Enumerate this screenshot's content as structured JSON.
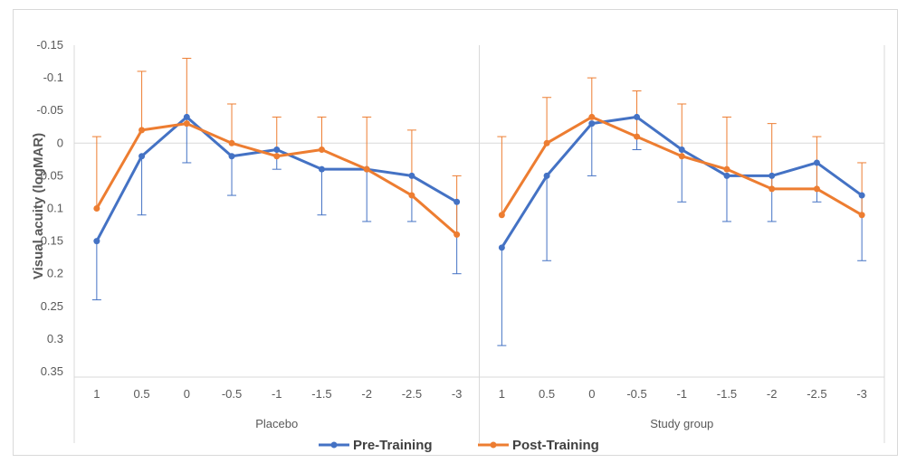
{
  "chart_data": {
    "type": "line",
    "ylabel": "Visual acuity (logMAR)",
    "y_axis_reversed": true,
    "ylim": [
      -0.15,
      0.35
    ],
    "y_ticks": [
      "-0.15",
      "-0.1",
      "-0.05",
      "0",
      "0.05",
      "0.1",
      "0.15",
      "0.2",
      "0.25",
      "0.3",
      "0.35"
    ],
    "y_tick_values": [
      -0.15,
      -0.1,
      -0.05,
      0,
      0.05,
      0.1,
      0.15,
      0.2,
      0.25,
      0.3,
      0.35
    ],
    "categories": [
      "1",
      "0.5",
      "0",
      "-0.5",
      "-1",
      "-1.5",
      "-2",
      "-2.5",
      "-3"
    ],
    "legend_position": "bottom",
    "colors": {
      "Pre-Training": "#4472c4",
      "Post-Training": "#ed7d31"
    },
    "groups": [
      {
        "name": "Placebo",
        "series": [
          {
            "name": "Pre-Training",
            "values": [
              0.15,
              0.02,
              -0.04,
              0.02,
              0.01,
              0.04,
              0.04,
              0.05,
              0.09
            ],
            "error": [
              0.09,
              0.09,
              0.07,
              0.06,
              0.03,
              0.07,
              0.08,
              0.07,
              0.11
            ]
          },
          {
            "name": "Post-Training",
            "values": [
              0.1,
              -0.02,
              -0.03,
              0.0,
              0.02,
              0.01,
              0.04,
              0.08,
              0.14
            ],
            "error": [
              0.11,
              0.09,
              0.1,
              0.06,
              0.06,
              0.05,
              0.08,
              0.1,
              0.09
            ]
          }
        ]
      },
      {
        "name": "Study group",
        "series": [
          {
            "name": "Pre-Training",
            "values": [
              0.16,
              0.05,
              -0.03,
              -0.04,
              0.01,
              0.05,
              0.05,
              0.03,
              0.08
            ],
            "error": [
              0.15,
              0.13,
              0.08,
              0.05,
              0.08,
              0.07,
              0.07,
              0.06,
              0.1
            ]
          },
          {
            "name": "Post-Training",
            "values": [
              0.11,
              0.0,
              -0.04,
              -0.01,
              0.02,
              0.04,
              0.07,
              0.07,
              0.11
            ],
            "error": [
              0.12,
              0.07,
              0.06,
              0.07,
              0.08,
              0.08,
              0.1,
              0.08,
              0.08
            ]
          }
        ]
      }
    ]
  }
}
